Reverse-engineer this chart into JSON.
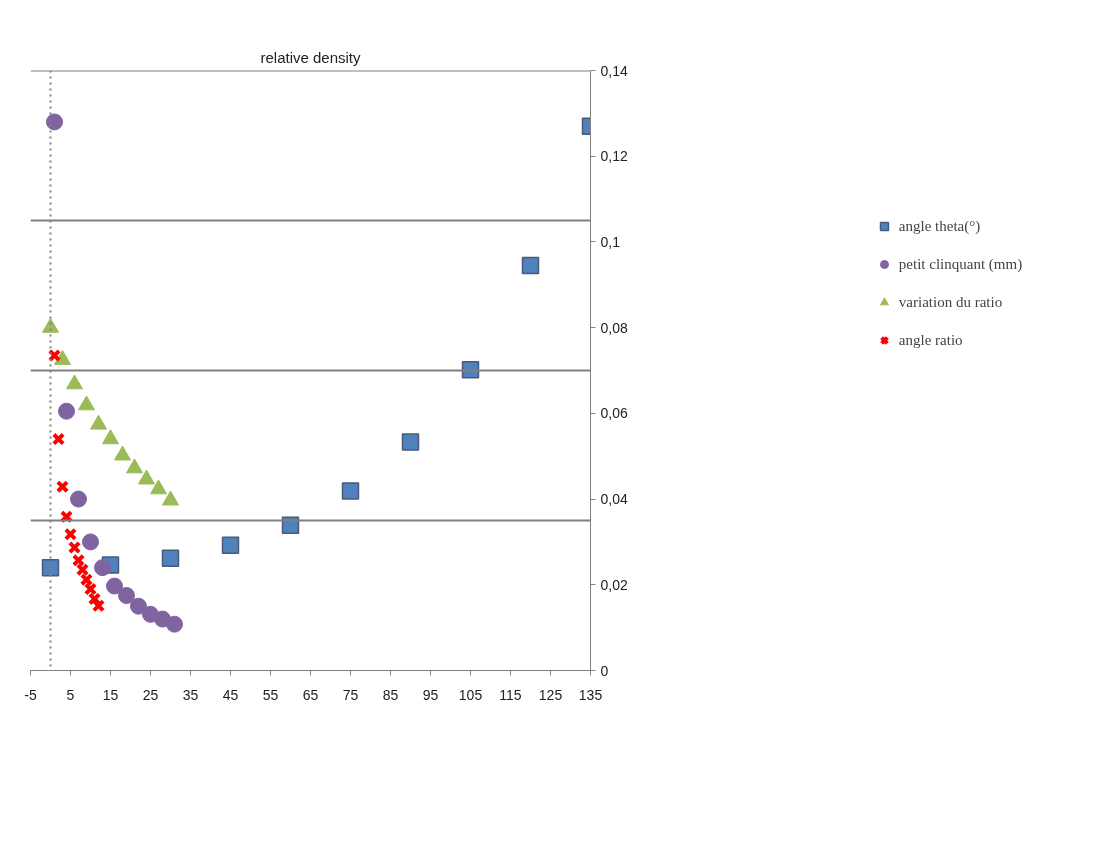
{
  "chart_data": {
    "type": "scatter",
    "title": "relative density",
    "xlim": [
      -5,
      135
    ],
    "xticks": [
      -5,
      5,
      15,
      25,
      35,
      45,
      55,
      65,
      75,
      85,
      95,
      105,
      115,
      125,
      135
    ],
    "ylim": [
      0,
      0.14
    ],
    "yticks": [
      {
        "value": 0,
        "label": "0"
      },
      {
        "value": 0.02,
        "label": "0,02"
      },
      {
        "value": 0.04,
        "label": "0,04"
      },
      {
        "value": 0.06,
        "label": "0,06"
      },
      {
        "value": 0.08,
        "label": "0,08"
      },
      {
        "value": 0.1,
        "label": "0,1"
      },
      {
        "value": 0.12,
        "label": "0,12"
      },
      {
        "value": 0.14,
        "label": "0,14"
      }
    ],
    "ref_lines": [
      {
        "axis": "y",
        "value": 0.035,
        "color": "#808080",
        "line_style": "solid"
      },
      {
        "axis": "y",
        "value": 0.07,
        "color": "#808080",
        "line_style": "solid"
      },
      {
        "axis": "y",
        "value": 0.105,
        "color": "#808080",
        "line_style": "solid"
      },
      {
        "axis": "y",
        "value": 0.14,
        "color": "#808080",
        "line_style": "solid"
      },
      {
        "axis": "x",
        "value": 0,
        "color": "#808080",
        "line_style": "dotted"
      }
    ],
    "legend": "right",
    "grid": false,
    "series": [
      {
        "name": "angle theta(°)",
        "color": "#4f81bd",
        "marker": "square",
        "x": [
          0,
          15,
          30,
          45,
          60,
          75,
          90,
          105,
          120,
          135
        ],
        "values": [
          0.024,
          0.0246,
          0.0262,
          0.0292,
          0.0339,
          0.0419,
          0.0533,
          0.0702,
          0.0945,
          0.127
        ]
      },
      {
        "name": "petit clinquant (mm)",
        "color": "#8064a2",
        "marker": "circle",
        "x": [
          1,
          4,
          7,
          10,
          13,
          16,
          19,
          22,
          25,
          28,
          31
        ],
        "values": [
          0.128,
          0.0605,
          0.04,
          0.03,
          0.024,
          0.0197,
          0.0175,
          0.015,
          0.0131,
          0.012,
          0.0108
        ]
      },
      {
        "name": "variation du ratio",
        "color": "#9bbb59",
        "marker": "triangle",
        "x": [
          0,
          3,
          6,
          9,
          12,
          15,
          18,
          21,
          24,
          27,
          30
        ],
        "values": [
          0.08,
          0.0725,
          0.0668,
          0.0619,
          0.0574,
          0.054,
          0.0502,
          0.0472,
          0.0446,
          0.0423,
          0.0397
        ]
      },
      {
        "name": "angle ratio",
        "color": "#ff0000",
        "marker": "cross",
        "x": [
          1,
          2,
          3,
          4,
          5,
          6,
          7,
          8,
          9,
          10,
          11,
          12
        ],
        "values": [
          0.0735,
          0.054,
          0.0429,
          0.0359,
          0.0318,
          0.0287,
          0.0257,
          0.0235,
          0.0212,
          0.019,
          0.0167,
          0.0151
        ]
      }
    ]
  }
}
